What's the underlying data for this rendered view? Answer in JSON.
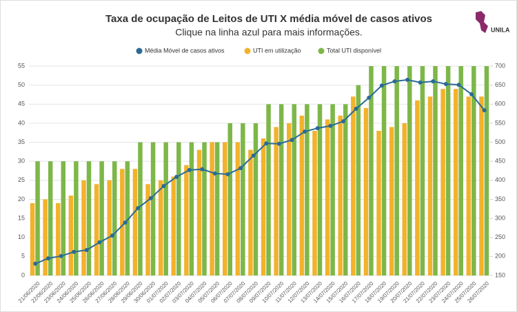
{
  "logo": "UNILA",
  "chart_data": {
    "type": "bar",
    "title": "Taxa de ocupação de Leitos de UTI X média móvel de casos ativos",
    "subtitle": "Clique na linha azul para mais informações.",
    "categories": [
      "21/06/2020",
      "22/06/2020",
      "23/06/2020",
      "24/06/2020",
      "25/06/2020",
      "26/06/2020",
      "27/06/2020",
      "28/06/2020",
      "29/06/2020",
      "30/06/2020",
      "01/07/2020",
      "02/07/2020",
      "03/07/2020",
      "04/07/2020",
      "05/07/2020",
      "06/07/2020",
      "07/07/2020",
      "08/07/2020",
      "09/07/2020",
      "10/07/2020",
      "11/07/2020",
      "12/07/2020",
      "13/07/2020",
      "14/07/2020",
      "15/07/2020",
      "16/07/2020",
      "17/07/2020",
      "18/07/2020",
      "19/07/2020",
      "20/07/2020",
      "21/07/2020",
      "22/07/2020",
      "23/07/2020",
      "24/07/2020",
      "25/07/2020",
      "26/07/2020"
    ],
    "series": [
      {
        "name": "Média Móvel de casos ativos",
        "type": "line",
        "axis": "y2",
        "color": "#2a6a96",
        "values": [
          181,
          195,
          201,
          212,
          217,
          237,
          255,
          289,
          327,
          353,
          385,
          409,
          427,
          429,
          418,
          416,
          432,
          465,
          497,
          496,
          506,
          528,
          537,
          543,
          555,
          588,
          617,
          649,
          660,
          664,
          657,
          660,
          653,
          651,
          626,
          584
        ]
      },
      {
        "name": "UTI em utilização",
        "type": "bar",
        "color": "#f2b22b",
        "values": [
          19,
          20,
          19,
          21,
          25,
          24,
          25,
          28,
          28,
          24,
          25,
          26,
          29,
          33,
          35,
          35,
          35,
          33,
          36,
          39,
          40,
          42,
          38,
          41,
          42,
          47,
          44,
          38,
          39,
          40,
          46,
          47,
          49,
          49,
          47,
          47
        ]
      },
      {
        "name": "Total UTI disponível",
        "type": "bar",
        "color": "#7db749",
        "values": [
          30,
          30,
          30,
          30,
          30,
          30,
          30,
          30,
          35,
          35,
          35,
          35,
          35,
          35,
          35,
          40,
          40,
          40,
          45,
          45,
          45,
          45,
          45,
          45,
          45,
          50,
          55,
          55,
          55,
          55,
          55,
          55,
          55,
          55,
          55,
          55
        ]
      }
    ],
    "ylim": [
      0,
      55
    ],
    "yticks": [
      0,
      5,
      10,
      15,
      20,
      25,
      30,
      35,
      40,
      45,
      50,
      55
    ],
    "y2lim": [
      150,
      700
    ],
    "y2ticks": [
      150,
      200,
      250,
      300,
      350,
      400,
      450,
      500,
      550,
      600,
      650,
      700
    ],
    "grid": true,
    "legend": "top"
  }
}
